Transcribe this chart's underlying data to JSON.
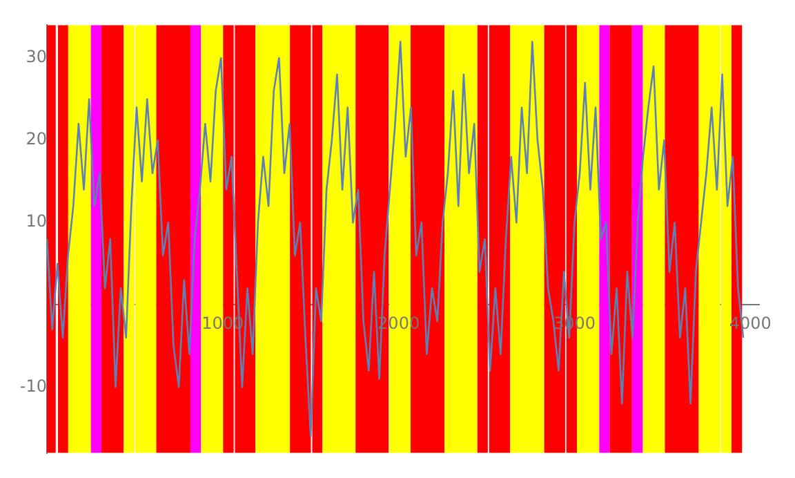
{
  "chart_data": {
    "type": "line",
    "x": [
      0,
      30,
      60,
      90,
      120,
      150,
      180,
      210,
      240,
      270,
      300,
      330,
      360,
      390,
      420,
      450,
      480,
      510,
      540,
      570,
      600,
      630,
      660,
      690,
      720,
      750,
      780,
      810,
      840,
      870,
      900,
      930,
      960,
      990,
      1020,
      1050,
      1080,
      1110,
      1140,
      1170,
      1200,
      1230,
      1260,
      1290,
      1320,
      1350,
      1380,
      1410,
      1440,
      1470,
      1500,
      1530,
      1560,
      1590,
      1620,
      1650,
      1680,
      1710,
      1740,
      1770,
      1800,
      1830,
      1860,
      1890,
      1920,
      1950,
      1980,
      2010,
      2040,
      2070,
      2100,
      2130,
      2160,
      2190,
      2220,
      2250,
      2280,
      2310,
      2340,
      2370,
      2400,
      2430,
      2460,
      2490,
      2520,
      2550,
      2580,
      2610,
      2640,
      2670,
      2700,
      2730,
      2760,
      2790,
      2820,
      2850,
      2880,
      2910,
      2940,
      2970,
      3000,
      3030,
      3060,
      3090,
      3120,
      3150,
      3180,
      3210,
      3240,
      3270,
      3300,
      3330,
      3360,
      3390,
      3420,
      3450,
      3480,
      3510,
      3540,
      3570,
      3600,
      3630,
      3660,
      3690,
      3720,
      3750,
      3780,
      3810,
      3840,
      3870,
      3900,
      3930,
      3960
    ],
    "series": [
      {
        "color": "#5e81b5",
        "values": [
          8,
          -3,
          5,
          -4,
          6,
          12,
          22,
          14,
          25,
          12,
          16,
          2,
          8,
          -10,
          2,
          -4,
          12,
          24,
          15,
          25,
          16,
          20,
          6,
          10,
          -5,
          -10,
          3,
          -6,
          8,
          14,
          22,
          15,
          26,
          30,
          14,
          18,
          4,
          -10,
          2,
          -6,
          10,
          18,
          12,
          26,
          30,
          16,
          22,
          6,
          10,
          -4,
          -16,
          2,
          -2,
          14,
          20,
          28,
          14,
          24,
          10,
          14,
          -2,
          -8,
          4,
          -9,
          6,
          14,
          22,
          32,
          18,
          24,
          6,
          10,
          -6,
          2,
          -2,
          10,
          16,
          26,
          12,
          28,
          16,
          22,
          4,
          8,
          -8,
          2,
          -6,
          8,
          18,
          10,
          24,
          16,
          32,
          20,
          14,
          2,
          -2,
          -8,
          4,
          -4,
          10,
          16,
          27,
          14,
          24,
          8,
          10,
          -6,
          2,
          -12,
          4,
          -4,
          10,
          18,
          24,
          29,
          14,
          20,
          4,
          10,
          -4,
          2,
          -12,
          4,
          10,
          16,
          24,
          14,
          28,
          12,
          18,
          2,
          -4
        ]
      }
    ],
    "xlim": [
      0,
      4050
    ],
    "ylim": [
      -18,
      34
    ],
    "xticks": [
      1000,
      2000,
      3000,
      4000
    ],
    "yticks": [
      -10,
      10,
      20,
      30
    ],
    "grid": false,
    "legend": false,
    "marker": "none",
    "line_style": "solid",
    "bands": [
      {
        "axis": "x",
        "from": 0,
        "to": 50,
        "color": "#ff0000"
      },
      {
        "axis": "x",
        "from": 63,
        "to": 121,
        "color": "#ff0000"
      },
      {
        "axis": "x",
        "from": 121,
        "to": 250,
        "color": "#ffff00"
      },
      {
        "axis": "x",
        "from": 250,
        "to": 310,
        "color": "#ff00ff"
      },
      {
        "axis": "x",
        "from": 310,
        "to": 436,
        "color": "#ff0000"
      },
      {
        "axis": "x",
        "from": 436,
        "to": 498,
        "color": "#ffff00"
      },
      {
        "axis": "x",
        "from": 503,
        "to": 622,
        "color": "#ffff00"
      },
      {
        "axis": "x",
        "from": 622,
        "to": 816,
        "color": "#ff0000"
      },
      {
        "axis": "x",
        "from": 816,
        "to": 876,
        "color": "#ff00ff"
      },
      {
        "axis": "x",
        "from": 876,
        "to": 1002,
        "color": "#ffff00"
      },
      {
        "axis": "x",
        "from": 1002,
        "to": 1062,
        "color": "#ff0000"
      },
      {
        "axis": "x",
        "from": 1069,
        "to": 1186,
        "color": "#ff0000"
      },
      {
        "axis": "x",
        "from": 1186,
        "to": 1382,
        "color": "#ffff00"
      },
      {
        "axis": "x",
        "from": 1382,
        "to": 1501,
        "color": "#ff0000"
      },
      {
        "axis": "x",
        "from": 1509,
        "to": 1566,
        "color": "#ff0000"
      },
      {
        "axis": "x",
        "from": 1566,
        "to": 1755,
        "color": "#ffff00"
      },
      {
        "axis": "x",
        "from": 1755,
        "to": 1943,
        "color": "#ff0000"
      },
      {
        "axis": "x",
        "from": 1947,
        "to": 2068,
        "color": "#ffff00"
      },
      {
        "axis": "x",
        "from": 2068,
        "to": 2261,
        "color": "#ff0000"
      },
      {
        "axis": "x",
        "from": 2261,
        "to": 2448,
        "color": "#ffff00"
      },
      {
        "axis": "x",
        "from": 2448,
        "to": 2507,
        "color": "#ff0000"
      },
      {
        "axis": "x",
        "from": 2515,
        "to": 2634,
        "color": "#ff0000"
      },
      {
        "axis": "x",
        "from": 2634,
        "to": 2828,
        "color": "#ffff00"
      },
      {
        "axis": "x",
        "from": 2828,
        "to": 2947,
        "color": "#ff0000"
      },
      {
        "axis": "x",
        "from": 2954,
        "to": 3014,
        "color": "#ff0000"
      },
      {
        "axis": "x",
        "from": 3014,
        "to": 3141,
        "color": "#ffff00"
      },
      {
        "axis": "x",
        "from": 3141,
        "to": 3200,
        "color": "#ff00ff"
      },
      {
        "axis": "x",
        "from": 3200,
        "to": 3327,
        "color": "#ff0000"
      },
      {
        "axis": "x",
        "from": 3327,
        "to": 3389,
        "color": "#ff00ff"
      },
      {
        "axis": "x",
        "from": 3389,
        "to": 3514,
        "color": "#ffff00"
      },
      {
        "axis": "x",
        "from": 3514,
        "to": 3707,
        "color": "#ff0000"
      },
      {
        "axis": "x",
        "from": 3707,
        "to": 3829,
        "color": "#ffff00"
      },
      {
        "axis": "x",
        "from": 3834,
        "to": 3893,
        "color": "#ffff00"
      },
      {
        "axis": "x",
        "from": 3893,
        "to": 3953,
        "color": "#ff0000"
      }
    ]
  }
}
